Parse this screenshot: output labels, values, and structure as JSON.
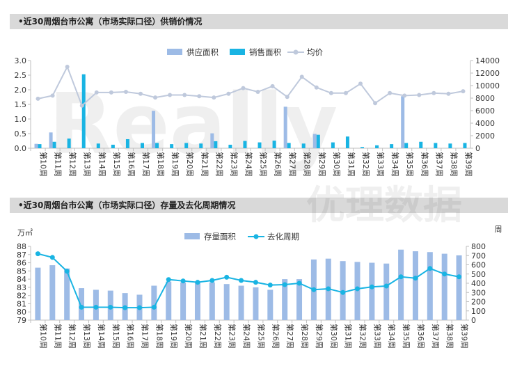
{
  "charts": [
    {
      "heading": "•近30周烟台市公寓（市场实际口径）供销价情况",
      "type": "bar",
      "categories": [
        "第10周",
        "第11周",
        "第12周",
        "第13周",
        "第14周",
        "第15周",
        "第16周",
        "第17周",
        "第18周",
        "第19周",
        "第20周",
        "第21周",
        "第22周",
        "第23周",
        "第24周",
        "第25周",
        "第26周",
        "第27周",
        "第28周",
        "第29周",
        "第30周",
        "第31周",
        "第32周",
        "第33周",
        "第34周",
        "第35周",
        "第36周",
        "第37周",
        "第38周",
        "第39周"
      ],
      "series": [
        {
          "name": "供应面积",
          "type": "bar",
          "axis": "left",
          "color": "#9dbbe6",
          "values": [
            0.15,
            0.54,
            0.0,
            0.0,
            0.0,
            0.0,
            0.0,
            0.0,
            1.28,
            0.0,
            0.0,
            0.0,
            0.51,
            0.0,
            0.0,
            0.0,
            0.0,
            1.42,
            0.0,
            0.49,
            0.0,
            0.0,
            0.0,
            0.0,
            0.0,
            1.78,
            0.0,
            0.0,
            0.0,
            0.0
          ]
        },
        {
          "name": "销售面积",
          "type": "bar",
          "axis": "left",
          "color": "#19b4e3",
          "values": [
            0.14,
            0.22,
            0.33,
            2.53,
            0.16,
            0.12,
            0.31,
            0.18,
            0.18,
            0.14,
            0.18,
            0.16,
            0.24,
            0.12,
            0.25,
            0.2,
            0.26,
            0.18,
            0.16,
            0.46,
            0.2,
            0.4,
            0.04,
            0.1,
            0.14,
            0.18,
            0.22,
            0.18,
            0.16,
            0.18
          ]
        },
        {
          "name": "均价",
          "type": "line",
          "axis": "right",
          "color": "#bfc9dc",
          "values": [
            7900,
            8400,
            13000,
            6800,
            8900,
            8900,
            9000,
            8700,
            8100,
            8500,
            8500,
            8300,
            8100,
            8700,
            9600,
            9000,
            9900,
            8200,
            11400,
            9700,
            8800,
            8800,
            10300,
            7200,
            8800,
            8400,
            8500,
            8800,
            8700,
            9100
          ]
        }
      ],
      "left_ticks": [
        "0.0",
        "0.5",
        "1.0",
        "1.5",
        "2.0",
        "2.5",
        "3.0"
      ],
      "right_ticks": [
        "0",
        "2000",
        "4000",
        "6000",
        "8000",
        "10000",
        "12000",
        "14000"
      ],
      "ylim_left": [
        0,
        3.0
      ],
      "ylim_right": [
        0,
        14000
      ],
      "legend": "top-center"
    },
    {
      "heading": "•近30周烟台市公寓（市场实际口径）存量及去化周期情况",
      "type": "bar",
      "left_unit": "万㎡",
      "right_unit": "周",
      "categories": [
        "第10周",
        "第11周",
        "第12周",
        "第13周",
        "第14周",
        "第15周",
        "第16周",
        "第17周",
        "第18周",
        "第19周",
        "第20周",
        "第21周",
        "第22周",
        "第23周",
        "第24周",
        "第25周",
        "第26周",
        "第27周",
        "第28周",
        "第29周",
        "第30周",
        "第31周",
        "第32周",
        "第33周",
        "第34周",
        "第35周",
        "第36周",
        "第37周",
        "第38周",
        "第39周"
      ],
      "series": [
        {
          "name": "存量面积",
          "type": "bar",
          "axis": "left",
          "color": "#9dbbe6",
          "values": [
            85.4,
            85.7,
            85.3,
            82.9,
            82.7,
            82.6,
            82.3,
            82.1,
            83.2,
            83.7,
            83.6,
            83.6,
            83.6,
            83.4,
            83.2,
            83.0,
            82.7,
            84.0,
            84.0,
            86.4,
            86.5,
            86.2,
            86.1,
            86.0,
            85.9,
            87.6,
            87.4,
            87.3,
            87.1,
            86.9
          ]
        },
        {
          "name": "去化周期",
          "type": "line",
          "axis": "right",
          "color": "#19b4e3",
          "values": [
            720,
            680,
            530,
            140,
            140,
            140,
            135,
            135,
            140,
            440,
            425,
            410,
            430,
            465,
            430,
            410,
            380,
            385,
            400,
            330,
            340,
            300,
            340,
            360,
            370,
            470,
            455,
            560,
            500,
            470
          ]
        }
      ],
      "left_ticks": [
        "79",
        "80",
        "81",
        "82",
        "83",
        "84",
        "85",
        "86",
        "87",
        "88"
      ],
      "right_ticks": [
        "0",
        "100",
        "200",
        "300",
        "400",
        "500",
        "600",
        "700",
        "800"
      ],
      "ylim_left": [
        79,
        88
      ],
      "ylim_right": [
        0,
        800
      ],
      "legend": "top-center"
    }
  ],
  "watermark": {
    "latin": "Really",
    "cn": "优理数据"
  }
}
